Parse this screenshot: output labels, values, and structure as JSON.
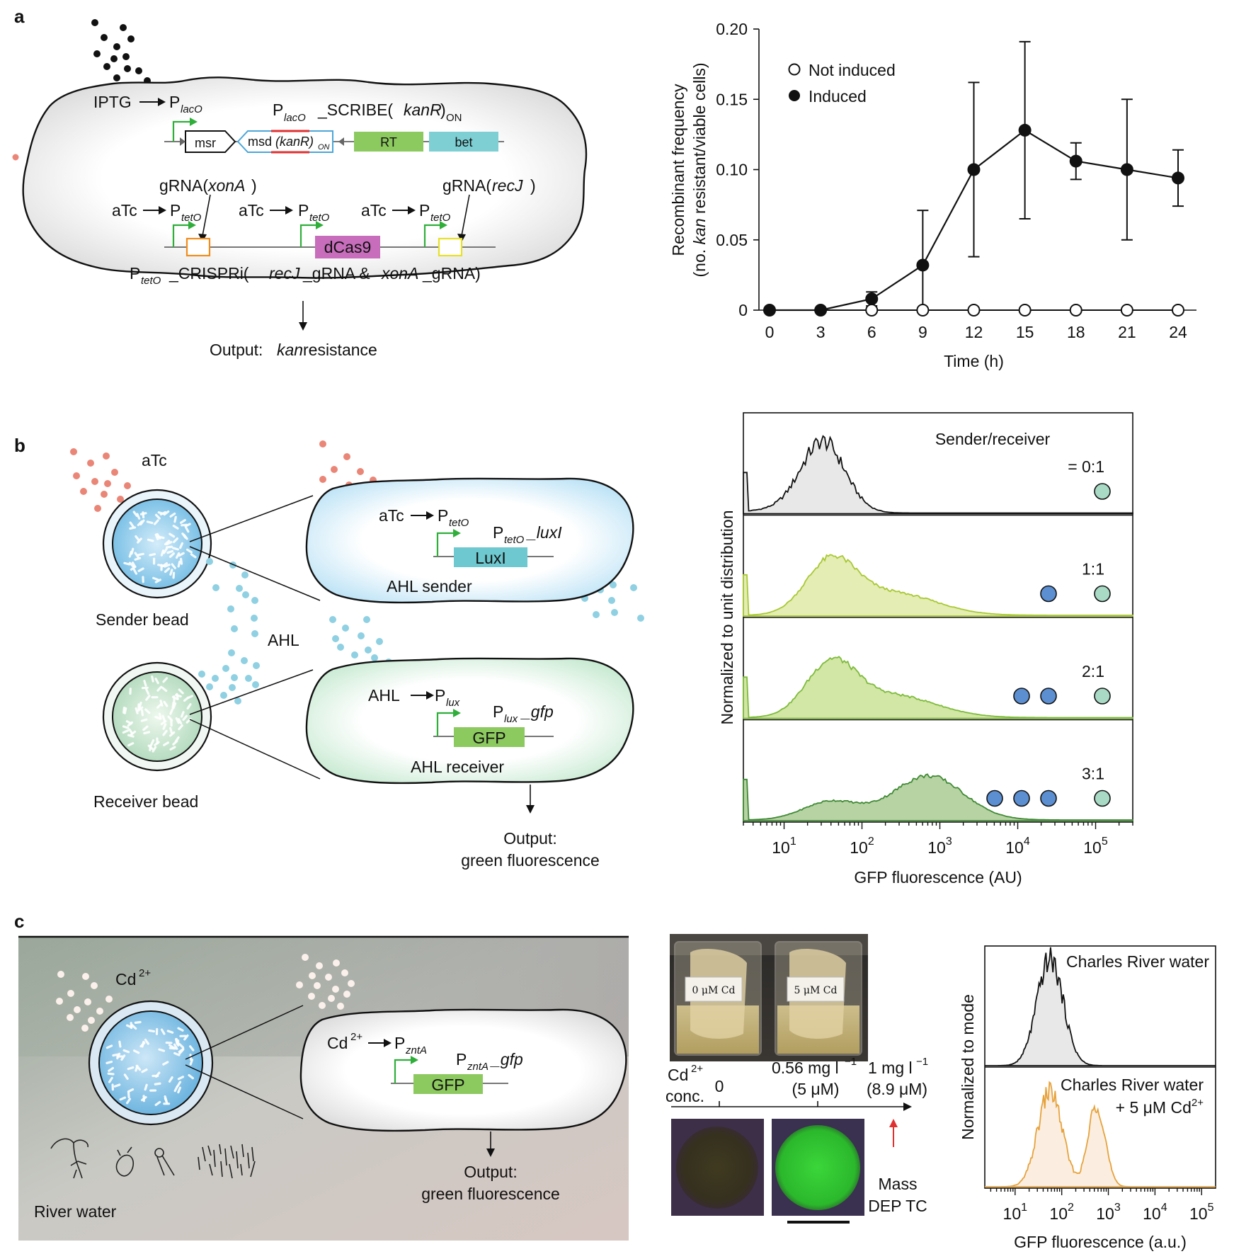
{
  "panels": {
    "a": {
      "label": "a",
      "iptg": "IPTG",
      "placo": "P",
      "placo_sub": "lacO",
      "scribe_p": "P",
      "scribe_sub": "lacO",
      "scribe_main": "_SCRIBE(",
      "scribe_kan": "kanR",
      "scribe_end": ")",
      "scribe_on": "ON",
      "msr": "msr",
      "msd": "msd",
      "msd_kan": "(kanR)",
      "msd_on": "ON",
      "rt": "RT",
      "bet": "bet",
      "grna_xona_a": "gRNA(",
      "grna_xona_b": "xonA",
      "grna_xona_c": ")",
      "grna_recj_a": "gRNA(",
      "grna_recj_b": "recJ",
      "grna_recj_c": ")",
      "atc": "aTc",
      "ptet": "P",
      "ptet_sub": "tetO",
      "dcas9": "dCas9",
      "crispri_p": "P",
      "crispri_sub": "tetO",
      "crispri_a": "_CRISPRi(",
      "crispri_recj": "recJ",
      "crispri_b": "_gRNA & ",
      "crispri_xona": "xonA",
      "crispri_c": "_gRNA)",
      "output_a": "Output: ",
      "output_b": "kan",
      "output_c": " resistance"
    },
    "b": {
      "label": "b",
      "atc": "aTc",
      "sender_bead": "Sender bead",
      "receiver_bead": "Receiver bead",
      "ahl": "AHL",
      "sender_atc": "aTc",
      "sender_p": "P",
      "sender_p_sub": "tetO",
      "sender_gene_p": "P",
      "sender_gene_sub": "tetO",
      "sender_gene_name": "_luxI",
      "luxi": "LuxI",
      "ahl_sender": "AHL sender",
      "recv_ahl": "AHL",
      "recv_p": "P",
      "recv_p_sub": "lux",
      "recv_gene_p": "P",
      "recv_gene_sub": "lux",
      "recv_gene_name": "_gfp",
      "gfp": "GFP",
      "ahl_receiver": "AHL receiver",
      "output_line1": "Output:",
      "output_line2": "green fluorescence"
    },
    "c": {
      "label": "c",
      "cd": "Cd",
      "cd_sup": "2+",
      "river_water": "River water",
      "cell_cd": "Cd",
      "cell_cd_sup": "2+",
      "cell_p": "P",
      "cell_p_sub": "zntA",
      "gene_p": "P",
      "gene_sub": "zntA",
      "gene_name": "_gfp",
      "gfp": "GFP",
      "output_line1": "Output:",
      "output_line2": "green fluorescence",
      "beaker1": "0 μM Cd",
      "beaker2": "5 μM Cd",
      "conc_label_a": "Cd",
      "conc_label_sup": "2+",
      "conc_label_b": "conc.",
      "conc_0": "0",
      "conc_1a": "0.56 mg l",
      "conc_1sup": "−1",
      "conc_1b": "(5 μM)",
      "conc_2a": "1 mg l",
      "conc_2sup": "−1",
      "conc_2b": "(8.9 μM)",
      "mass_dep_1": "Mass",
      "mass_dep_2": "DEP TC"
    }
  },
  "chart_data": [
    {
      "type": "line",
      "panel": "a",
      "xlabel": "Time (h)",
      "ylabel_line1": "Recombinant frequency",
      "ylabel_line2_a": "(no. ",
      "ylabel_line2_b": "kan",
      "ylabel_line2_c": " resistant/viable cells)",
      "x": [
        0,
        3,
        6,
        9,
        12,
        15,
        18,
        21,
        24
      ],
      "xticks": [
        "0",
        "3",
        "6",
        "9",
        "12",
        "15",
        "18",
        "21",
        "24"
      ],
      "yticks": [
        "0",
        "0.05",
        "0.10",
        "0.15",
        "0.20"
      ],
      "ytick_values": [
        0,
        0.05,
        0.1,
        0.15,
        0.2
      ],
      "xlim": [
        0,
        24
      ],
      "ylim": [
        0,
        0.2
      ],
      "legend_position": "top-left",
      "series": [
        {
          "name": "Not induced",
          "marker": "open-circle",
          "values": [
            0,
            0,
            0,
            0,
            0,
            0,
            0,
            0,
            0
          ]
        },
        {
          "name": "Induced",
          "marker": "filled-circle",
          "values": [
            0,
            0,
            0.008,
            0.032,
            0.1,
            0.128,
            0.106,
            0.1,
            0.094
          ],
          "error": [
            0,
            0,
            0.005,
            0.039,
            0.062,
            0.063,
            0.013,
            0.05,
            0.02
          ]
        }
      ]
    },
    {
      "type": "area",
      "panel": "b",
      "title": "Sender/receiver",
      "xlabel": "GFP fluorescence (AU)",
      "ylabel": "Normalized to unit distribution",
      "xscale": "log",
      "xlim": [
        3,
        300000
      ],
      "xtick_exponents": [
        "1",
        "2",
        "3",
        "4",
        "5"
      ],
      "xtick_base": "10",
      "rows": [
        {
          "ratio": "= 0:1",
          "senders": 0,
          "peak_log": 1.5,
          "color": "#e8e8e8",
          "stroke": "#111111"
        },
        {
          "ratio": "1:1",
          "senders": 1,
          "peak_log": 1.6,
          "color": "#e3edb4",
          "stroke": "#a8c832"
        },
        {
          "ratio": "2:1",
          "senders": 2,
          "peak_log": 1.6,
          "color": "#d2e6a6",
          "stroke": "#7dbb3a"
        },
        {
          "ratio": "3:1",
          "senders": 3,
          "peak_log": 2.9,
          "color": "#b7d3a3",
          "stroke": "#3f8a34"
        }
      ],
      "colors": {
        "sender": "#5b8fd1",
        "receiver": "#a8dac6"
      }
    },
    {
      "type": "area",
      "panel": "c",
      "xlabel": "GFP fluorescence (a.u.)",
      "ylabel": "Normalized to mode",
      "xscale": "log",
      "xtick_exponents": [
        "1",
        "2",
        "3",
        "4",
        "5"
      ],
      "xtick_base": "10",
      "rows": [
        {
          "name": "Charles River water",
          "color": "#e8e8e8",
          "stroke": "#111111"
        },
        {
          "name_a": "Charles River water",
          "name_b": "+ 5 μM Cd",
          "name_sup": "2+",
          "color": "#fbeee0",
          "stroke": "#e6a23c"
        }
      ]
    }
  ]
}
